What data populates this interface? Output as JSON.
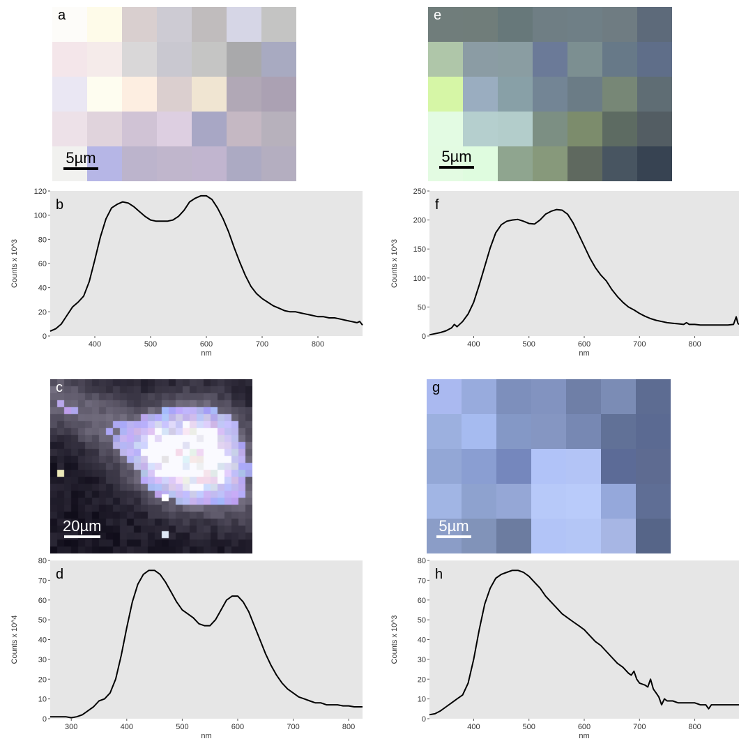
{
  "images": [
    {
      "letter": "a",
      "scale_label": "5µm",
      "letter_color": "#000000",
      "scale_color": "#000000",
      "cols": 7,
      "rows": 5,
      "colors": [
        "#fdfcf9",
        "#fefbe9",
        "#d9cfcf",
        "#cdcbd3",
        "#c0bcbd",
        "#d6d6e6",
        "#c4c4c3",
        "#f4e6ea",
        "#f5ebea",
        "#d9d7d8",
        "#c9c8d0",
        "#c5c5c4",
        "#a9a9ab",
        "#a8aac1",
        "#eae7f3",
        "#fefdf0",
        "#fdeee1",
        "#dbcfcf",
        "#f0e5d2",
        "#b1a8b6",
        "#aba1b3",
        "#ede1e8",
        "#e0d3dc",
        "#d0c3d5",
        "#ddcfe1",
        "#a8a7c5",
        "#c5b8c3",
        "#b7b1bc",
        "#f1f1ef",
        "#b6b6e6",
        "#bcb4cc",
        "#c0b6cc",
        "#c1b5cf",
        "#acaac3",
        "#b4aec0"
      ]
    },
    {
      "letter": "e",
      "scale_label": "5µm",
      "letter_color": "#ffffff",
      "scale_color": "#000000",
      "cols": 7,
      "rows": 5,
      "colors": [
        "#707d7b",
        "#707d7a",
        "#67787a",
        "#6f7e84",
        "#6f7f86",
        "#6f7c82",
        "#5d6a7a",
        "#afc6a9",
        "#8b9ca4",
        "#8a9da2",
        "#6b7a98",
        "#7c8f91",
        "#677988",
        "#5f6e89",
        "#d6f6a6",
        "#9aadc0",
        "#88a0a7",
        "#738595",
        "#6b7c86",
        "#778776",
        "#5f6d74",
        "#e3fbe3",
        "#b5cfce",
        "#b3cdcb",
        "#7c8f83",
        "#7c8c6c",
        "#5d6b62",
        "#535d63",
        "#e3fbe2",
        "#dffcdf",
        "#8fa58f",
        "#87997b",
        "#5f695f",
        "#485561",
        "#374352"
      ]
    },
    {
      "letter": "g",
      "scale_label": "5µm",
      "letter_color": "#000000",
      "scale_color": "#ffffff",
      "cols": 7,
      "rows": 5,
      "colors": [
        "#aab9f0",
        "#98abdd",
        "#7d8fbc",
        "#8293c0",
        "#6f7fa7",
        "#7b8cb5",
        "#5d6c92",
        "#9cb0df",
        "#a6bbf0",
        "#8498c6",
        "#8596c2",
        "#7788b3",
        "#617197",
        "#5b6a92",
        "#93a7d6",
        "#8a9ed2",
        "#7587bd",
        "#b1c3f8",
        "#b3c4f6",
        "#5c6b97",
        "#5e6b91",
        "#a1b5e4",
        "#8ea2cf",
        "#95a7d6",
        "#b7c9f9",
        "#b9cbfa",
        "#95a8db",
        "#5f6e95",
        "#8b9dc7",
        "#8193b9",
        "#6c7ca0",
        "#b2c4f7",
        "#b4c6f6",
        "#a7b6e4",
        "#566588"
      ]
    },
    {
      "letter": "c",
      "scale_label": "20µm",
      "letter_color": "#ffffff",
      "scale_color": "#ffffff"
    }
  ],
  "chart_data": [
    {
      "type": "line",
      "panel": "b",
      "xlabel": "nm",
      "ylabel": "Counts x 10^3",
      "xlim": [
        320,
        880
      ],
      "ylim": [
        0,
        120
      ],
      "xticks": [
        400,
        500,
        600,
        700,
        800
      ],
      "yticks": [
        0,
        20,
        40,
        60,
        80,
        100,
        120
      ],
      "series": [
        {
          "x": [
            320,
            330,
            340,
            350,
            360,
            370,
            380,
            390,
            400,
            410,
            420,
            430,
            440,
            450,
            460,
            470,
            480,
            490,
            500,
            510,
            520,
            530,
            540,
            550,
            560,
            570,
            580,
            590,
            600,
            610,
            620,
            630,
            640,
            650,
            660,
            670,
            680,
            690,
            700,
            710,
            720,
            730,
            740,
            750,
            760,
            770,
            780,
            790,
            800,
            810,
            820,
            830,
            840,
            850,
            860,
            870,
            875,
            880
          ],
          "y": [
            4,
            6,
            10,
            17,
            24,
            28,
            33,
            45,
            63,
            82,
            97,
            106,
            109,
            111,
            110,
            107,
            103,
            99,
            96,
            95,
            95,
            95,
            96,
            99,
            104,
            111,
            114,
            116,
            116,
            113,
            106,
            97,
            86,
            73,
            61,
            50,
            41,
            35,
            31,
            28,
            25,
            23,
            21,
            20,
            20,
            19,
            18,
            17,
            16,
            16,
            15,
            15,
            14,
            13,
            12,
            11,
            12,
            9
          ]
        }
      ]
    },
    {
      "type": "line",
      "panel": "f",
      "xlabel": "nm",
      "ylabel": "Counts x 10^3",
      "xlim": [
        320,
        880
      ],
      "ylim": [
        0,
        250
      ],
      "xticks": [
        400,
        500,
        600,
        700,
        800
      ],
      "yticks": [
        0,
        50,
        100,
        150,
        200,
        250
      ],
      "series": [
        {
          "x": [
            320,
            330,
            340,
            350,
            360,
            365,
            370,
            380,
            390,
            400,
            410,
            420,
            430,
            440,
            450,
            460,
            470,
            480,
            490,
            500,
            510,
            520,
            530,
            540,
            550,
            560,
            570,
            580,
            590,
            600,
            610,
            620,
            630,
            640,
            650,
            660,
            670,
            680,
            690,
            700,
            710,
            720,
            730,
            740,
            750,
            760,
            770,
            780,
            785,
            790,
            800,
            810,
            820,
            830,
            840,
            850,
            860,
            870,
            875,
            878,
            880
          ],
          "y": [
            2,
            4,
            6,
            9,
            14,
            20,
            16,
            25,
            38,
            58,
            88,
            120,
            152,
            178,
            192,
            198,
            200,
            201,
            198,
            194,
            193,
            200,
            210,
            215,
            218,
            217,
            210,
            195,
            175,
            155,
            135,
            118,
            105,
            95,
            80,
            68,
            58,
            50,
            45,
            39,
            34,
            30,
            27,
            25,
            23,
            22,
            21,
            20,
            23,
            20,
            20,
            19,
            19,
            19,
            19,
            19,
            19,
            20,
            33,
            22,
            20
          ]
        }
      ]
    },
    {
      "type": "line",
      "panel": "d",
      "xlabel": "nm",
      "ylabel": "Counts x 10^4",
      "xlim": [
        262,
        825
      ],
      "ylim": [
        0,
        80
      ],
      "xticks": [
        300,
        400,
        500,
        600,
        700,
        800
      ],
      "yticks": [
        0,
        10,
        20,
        30,
        40,
        50,
        60,
        70,
        80
      ],
      "series": [
        {
          "x": [
            262,
            270,
            280,
            290,
            300,
            310,
            320,
            330,
            340,
            350,
            360,
            370,
            380,
            390,
            400,
            410,
            420,
            430,
            440,
            450,
            460,
            470,
            480,
            490,
            500,
            510,
            520,
            530,
            540,
            550,
            560,
            570,
            580,
            590,
            600,
            610,
            620,
            630,
            640,
            650,
            660,
            670,
            680,
            690,
            700,
            710,
            720,
            730,
            740,
            750,
            760,
            770,
            780,
            790,
            800,
            810,
            820,
            825
          ],
          "y": [
            1,
            1,
            1,
            1,
            0.5,
            1,
            2,
            4,
            6,
            9,
            10,
            13,
            20,
            32,
            46,
            59,
            68,
            73,
            75,
            75,
            73,
            69,
            64,
            59,
            55,
            53,
            51,
            48,
            47,
            47,
            50,
            55,
            60,
            62,
            62,
            59,
            54,
            47,
            40,
            33,
            27,
            22,
            18,
            15,
            13,
            11,
            10,
            9,
            8,
            8,
            7,
            7,
            7,
            6.5,
            6.5,
            6,
            6,
            6
          ]
        }
      ]
    },
    {
      "type": "line",
      "panel": "h",
      "xlabel": "nm",
      "ylabel": "Counts x 10^3",
      "xlim": [
        320,
        880
      ],
      "ylim": [
        0,
        80
      ],
      "xticks": [
        400,
        500,
        600,
        700,
        800
      ],
      "yticks": [
        0,
        10,
        20,
        30,
        40,
        50,
        60,
        70,
        80
      ],
      "series": [
        {
          "x": [
            320,
            330,
            340,
            350,
            360,
            370,
            380,
            390,
            400,
            410,
            420,
            430,
            440,
            450,
            460,
            470,
            480,
            490,
            500,
            510,
            520,
            530,
            540,
            550,
            560,
            570,
            580,
            590,
            600,
            610,
            620,
            630,
            640,
            650,
            660,
            670,
            680,
            685,
            690,
            695,
            700,
            710,
            715,
            720,
            725,
            730,
            735,
            740,
            745,
            750,
            760,
            770,
            780,
            790,
            800,
            810,
            820,
            825,
            830,
            840,
            850,
            860,
            870,
            880
          ],
          "y": [
            2,
            2.5,
            4,
            6,
            8,
            10,
            12,
            18,
            30,
            45,
            58,
            66,
            71,
            73,
            74,
            75,
            75,
            74,
            72,
            69,
            66,
            62,
            59,
            56,
            53,
            51,
            49,
            47,
            45,
            42,
            39,
            37,
            34,
            31,
            28,
            26,
            23,
            22,
            24,
            20,
            18,
            17,
            16,
            20,
            15,
            13,
            11,
            7,
            10,
            9,
            9,
            8,
            8,
            8,
            8,
            7,
            7,
            5,
            7,
            7,
            7,
            7,
            7,
            7
          ]
        }
      ]
    }
  ]
}
